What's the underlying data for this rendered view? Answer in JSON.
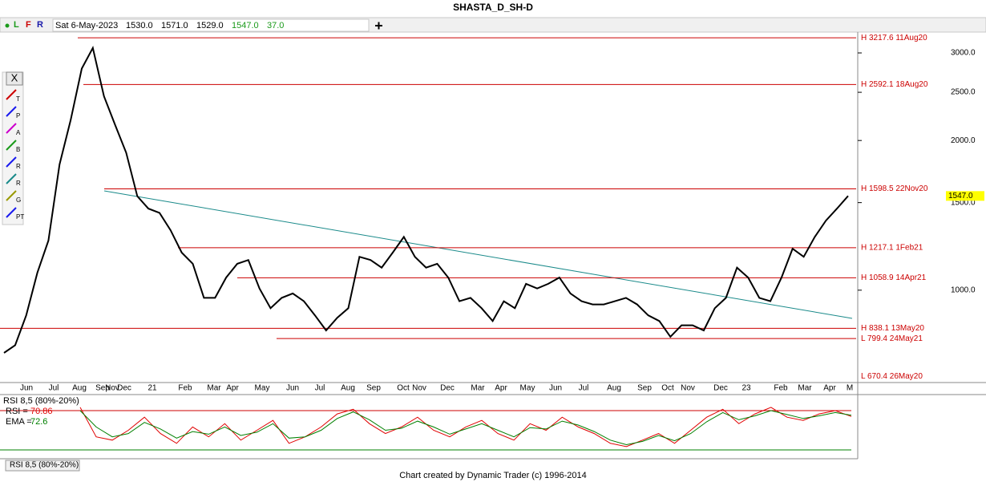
{
  "window": {
    "title": "SHASTA_D_SH-D",
    "toolbar": {
      "buttons": [
        "L",
        "F",
        "R"
      ],
      "date": "Sat 6-May-2023",
      "open": "1530.0",
      "high": "1571.0",
      "low": "1529.0",
      "close": "1547.0",
      "change": "37.0"
    },
    "side_toolbar": {
      "close": "X",
      "icons": [
        "T",
        "P",
        "A",
        "B",
        "R",
        "R",
        "G",
        "PT"
      ]
    },
    "footer": "Chart created by Dynamic Trader  (c) 1996-2014"
  },
  "chart_data": [
    {
      "type": "line",
      "title": "SHASTA_D_SH-D",
      "color": "#000000",
      "log_scale": true,
      "ylim": [
        652,
        3304
      ],
      "yticks": [
        {
          "value": 1000,
          "label": "1000.0"
        },
        {
          "value": 1500,
          "label": "1500.0"
        },
        {
          "value": 2000,
          "label": "2000.0"
        },
        {
          "value": 2500,
          "label": "2500.0"
        },
        {
          "value": 3000,
          "label": "3000.0"
        }
      ],
      "xtick_labels": [
        "Jun",
        "Jul",
        "Aug",
        "Sep",
        "Nov",
        "Dec",
        "21",
        "Feb",
        "Mar",
        "Apr",
        "May",
        "Jun",
        "Jul",
        "Aug",
        "Sep",
        "Oct",
        "Nov",
        "Dec",
        "Mar",
        "Apr",
        "May",
        "Jun",
        "Jul",
        "Aug",
        "Sep",
        "Oct",
        "Nov",
        "Dec",
        "23",
        "Feb",
        "Mar",
        "Apr",
        "M"
      ],
      "values": [
        748,
        775,
        890,
        1084,
        1258,
        1790,
        2197,
        2790,
        3070,
        2455,
        2150,
        1890,
        1545,
        1459,
        1430,
        1320,
        1190,
        1130,
        965,
        965,
        1060,
        1130,
        1150,
        1008,
        920,
        965,
        985,
        950,
        890,
        830,
        880,
        920,
        1167,
        1150,
        1110,
        1190,
        1280,
        1167,
        1110,
        1130,
        1060,
        950,
        965,
        920,
        867,
        950,
        920,
        1030,
        1008,
        1030,
        1060,
        985,
        950,
        936,
        936,
        950,
        965,
        936,
        890,
        867,
        806,
        850,
        850,
        830,
        920,
        965,
        1110,
        1060,
        965,
        950,
        1060,
        1212,
        1167,
        1280,
        1380,
        1459,
        1547
      ],
      "levels": [
        {
          "value": 3217.6,
          "label": "H 3217.6 11Aug20"
        },
        {
          "value": 2592.1,
          "label": "H 2592.1 18Aug20"
        },
        {
          "value": 1598.5,
          "label": "H 1598.5 22Nov20"
        },
        {
          "value": 1217.1,
          "label": "H 1217.1 1Feb21"
        },
        {
          "value": 1058.9,
          "label": "H 1058.9 14Apr21"
        },
        {
          "value": 838.1,
          "label": "H 838.1 13May20"
        },
        {
          "value": 799.4,
          "label": "L 799.4 24May21"
        },
        {
          "value": 670.4,
          "label": "L 670.4 26May20"
        }
      ]
    },
    {
      "type": "line",
      "title": "RSI 8,5 (80%-20%)",
      "tab": "RSI 8,5 (80%-20%)",
      "ylim": [
        9,
        102
      ],
      "levels": [
        {
          "value": 80,
          "color": "#cc0000"
        },
        {
          "value": 20,
          "color": "#008000"
        }
      ],
      "series": [
        {
          "name": "RSI =",
          "color": "#e00000",
          "current": 70.86,
          "values": [
            85,
            40,
            35,
            50,
            70,
            45,
            30,
            55,
            40,
            60,
            35,
            50,
            65,
            30,
            40,
            55,
            75,
            82,
            60,
            45,
            55,
            70,
            50,
            40,
            55,
            65,
            45,
            35,
            60,
            50,
            70,
            55,
            45,
            30,
            25,
            35,
            45,
            30,
            50,
            70,
            82,
            60,
            75,
            85,
            70,
            65,
            75,
            80,
            71
          ]
        },
        {
          "name": "EMA =",
          "color": "#008000",
          "current": 72.6,
          "values": [
            80,
            55,
            40,
            45,
            62,
            52,
            38,
            48,
            44,
            55,
            42,
            47,
            60,
            38,
            40,
            50,
            68,
            78,
            66,
            50,
            53,
            64,
            55,
            44,
            52,
            60,
            50,
            40,
            54,
            52,
            64,
            58,
            48,
            35,
            28,
            33,
            42,
            34,
            45,
            63,
            77,
            66,
            72,
            80,
            74,
            68,
            72,
            77,
            73
          ]
        }
      ]
    }
  ]
}
